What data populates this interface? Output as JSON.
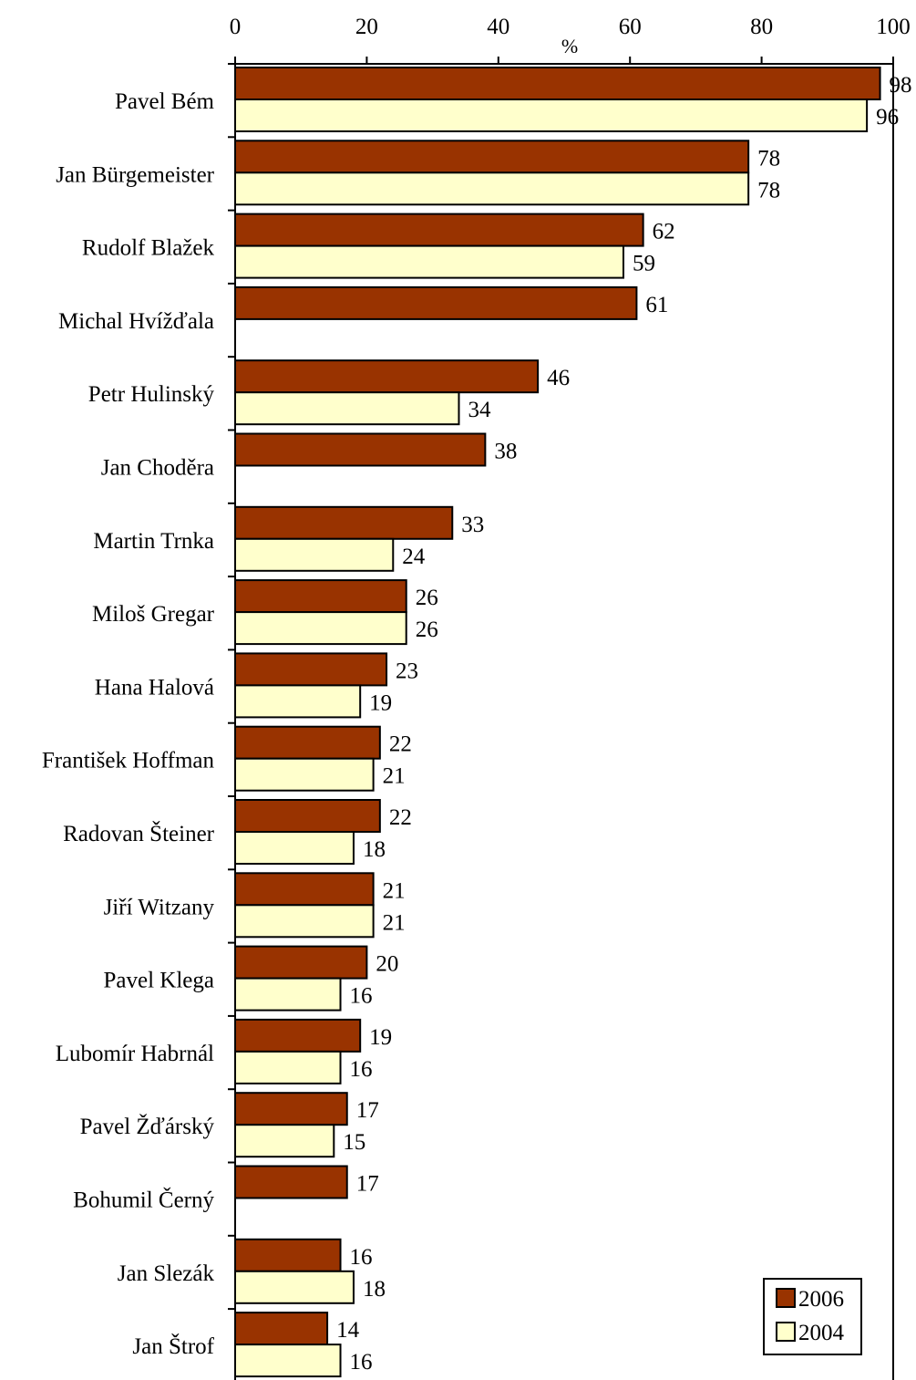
{
  "chart_data": {
    "type": "bar",
    "orientation": "horizontal",
    "xlabel": "%",
    "xlim": [
      0,
      100
    ],
    "x_ticks": [
      0,
      20,
      40,
      60,
      80,
      100
    ],
    "grid": false,
    "legend_position": "bottom-right",
    "categories": [
      "Pavel Bém",
      "Jan Bürgemeister",
      "Rudolf Blažek",
      "Michal Hvížďala",
      "Petr Hulinský",
      "Jan Choděra",
      "Martin Trnka",
      "Miloš Gregar",
      "Hana Halová",
      "František Hoffman",
      "Radovan Šteiner",
      "Jiří Witzany",
      "Pavel Klega",
      "Lubomír Habrnál",
      "Pavel Žďárský",
      "Bohumil Černý",
      "Jan Slezák",
      "Jan Štrof"
    ],
    "series": [
      {
        "name": "2006",
        "color": "#993300",
        "values": [
          98,
          78,
          62,
          61,
          46,
          38,
          33,
          26,
          23,
          22,
          22,
          21,
          20,
          19,
          17,
          17,
          16,
          14
        ]
      },
      {
        "name": "2004",
        "color": "#ffffcc",
        "values": [
          96,
          78,
          59,
          null,
          34,
          null,
          24,
          26,
          19,
          21,
          18,
          21,
          16,
          16,
          15,
          null,
          18,
          16
        ]
      }
    ]
  }
}
